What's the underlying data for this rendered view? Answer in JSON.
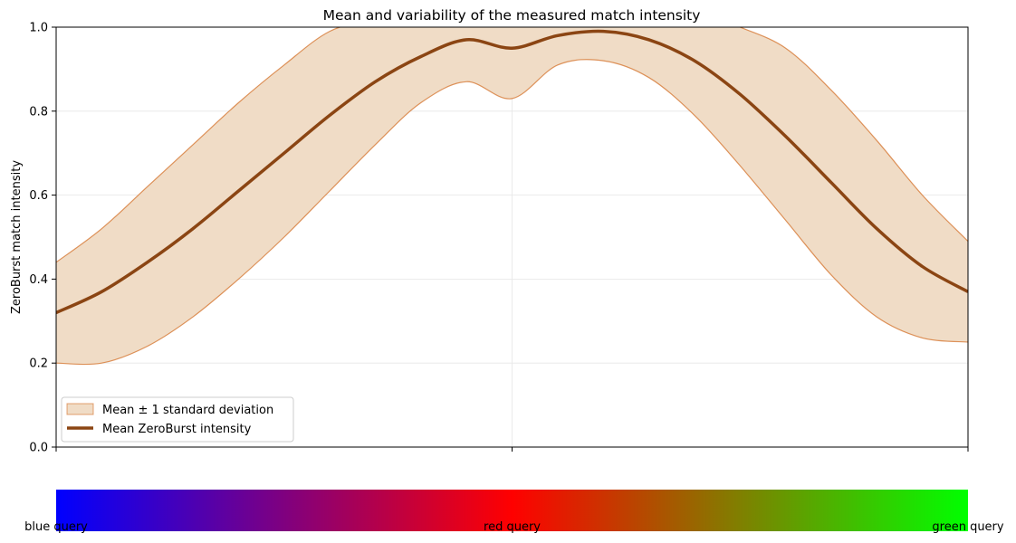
{
  "chart_data": {
    "type": "line",
    "title": "Mean and variability of the measured match intensity",
    "xlabel": "",
    "ylabel": "ZeroBurst match intensity",
    "ylim": [
      0,
      1
    ],
    "xlim": [
      0,
      1
    ],
    "yticks": [
      0.0,
      0.2,
      0.4,
      0.6,
      0.8,
      1.0
    ],
    "ytick_labels": [
      "0.0",
      "0.2",
      "0.4",
      "0.6",
      "0.8",
      "1.0"
    ],
    "xticks": [
      0,
      0.5,
      1
    ],
    "grid": true,
    "legend_position": "lower-left",
    "x": [
      0,
      0.05,
      0.1,
      0.15,
      0.2,
      0.25,
      0.3,
      0.35,
      0.4,
      0.45,
      0.5,
      0.55,
      0.6,
      0.65,
      0.7,
      0.75,
      0.8,
      0.85,
      0.9,
      0.95,
      1.0
    ],
    "series": [
      {
        "name": "Mean ZeroBurst intensity",
        "kind": "line",
        "color": "#8B4513",
        "values": [
          0.32,
          0.37,
          0.44,
          0.52,
          0.61,
          0.7,
          0.79,
          0.87,
          0.93,
          0.97,
          0.95,
          0.98,
          0.99,
          0.97,
          0.92,
          0.84,
          0.74,
          0.63,
          0.52,
          0.43,
          0.37
        ]
      },
      {
        "name": "Mean ± 1 standard deviation",
        "kind": "band",
        "color": "#d2691e",
        "fill": "#f0dcc6",
        "upper": [
          0.44,
          0.52,
          0.62,
          0.72,
          0.82,
          0.91,
          0.99,
          1.02,
          1.05,
          1.06,
          1.06,
          1.06,
          1.06,
          1.06,
          1.04,
          1.0,
          0.95,
          0.85,
          0.73,
          0.6,
          0.49
        ],
        "lower": [
          0.2,
          0.2,
          0.24,
          0.31,
          0.4,
          0.5,
          0.61,
          0.72,
          0.82,
          0.87,
          0.83,
          0.91,
          0.92,
          0.88,
          0.79,
          0.67,
          0.54,
          0.41,
          0.31,
          0.26,
          0.25
        ]
      }
    ],
    "colorbar": {
      "stops": [
        "#0000ff",
        "#ff0000",
        "#00ff00"
      ],
      "labels": [
        {
          "text": "blue query",
          "pos": 0
        },
        {
          "text": "red query",
          "pos": 0.5
        },
        {
          "text": "green query",
          "pos": 1
        }
      ]
    }
  }
}
